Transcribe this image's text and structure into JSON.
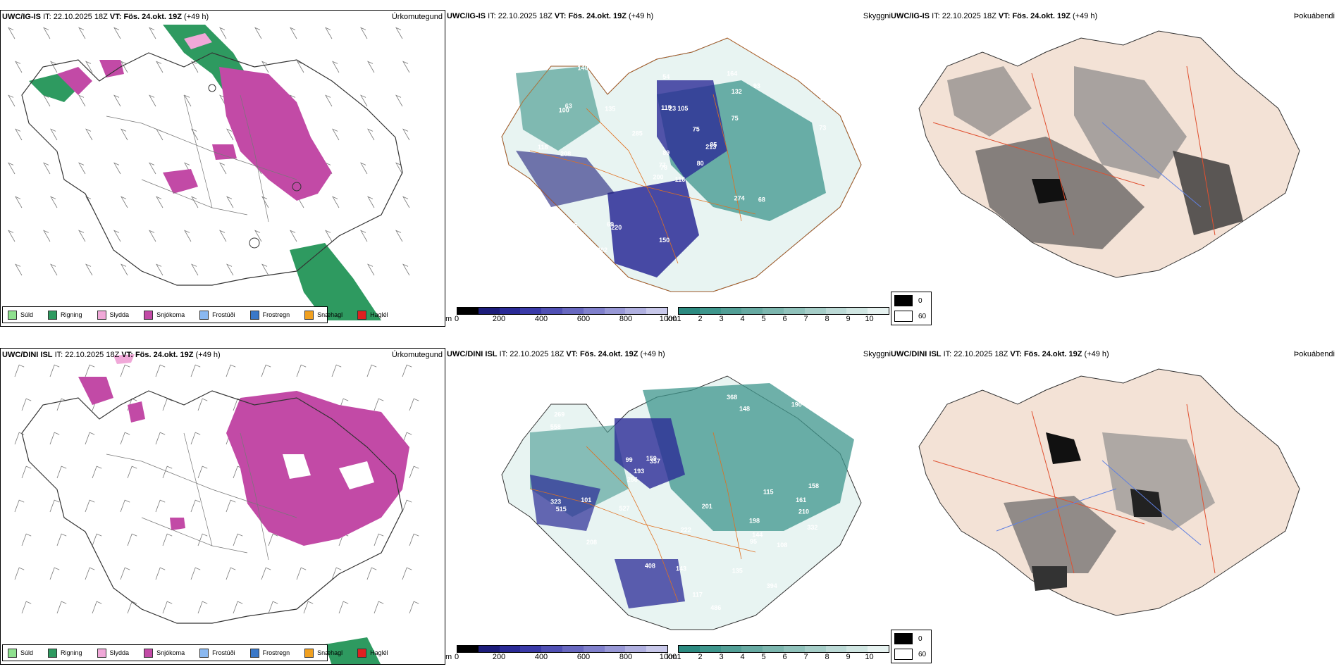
{
  "rows": [
    {
      "model": "UWC/IG-IS",
      "it_label": "IT:",
      "it_value": "22.10.2025 18Z",
      "vt_label": "VT:",
      "vt_value": "Fös. 24.okt. 19Z",
      "lead": "(+49 h)",
      "panels": {
        "precip_type": "Úrkomutegund",
        "visibility": "Skyggni",
        "fog": "Þokuábendi"
      }
    },
    {
      "model": "UWC/DINI ISL",
      "it_label": "IT:",
      "it_value": "22.10.2025 18Z",
      "vt_label": "VT:",
      "vt_value": "Fös. 24.okt. 19Z",
      "lead": "(+49 h)",
      "panels": {
        "precip_type": "Úrkomutegund",
        "visibility": "Skyggni",
        "fog": "Þokuábendi"
      }
    }
  ],
  "precip_legend": [
    {
      "label": "Súld",
      "color": "#8fe08f"
    },
    {
      "label": "Rigning",
      "color": "#2e9a60"
    },
    {
      "label": "Slydda",
      "color": "#f0a8d8"
    },
    {
      "label": "Snjókoma",
      "color": "#c24aa6"
    },
    {
      "label": "Frostúði",
      "color": "#8ab8f0"
    },
    {
      "label": "Frostregn",
      "color": "#3a78c8"
    },
    {
      "label": "Snæhagl",
      "color": "#f0a020"
    },
    {
      "label": "Haglél",
      "color": "#e02020"
    }
  ],
  "visibility_bar_m": {
    "unit": "m",
    "ticks": [
      "0",
      "200",
      "400",
      "600",
      "800",
      "1000"
    ],
    "colors": [
      "#000000",
      "#1c1c7a",
      "#2a2a96",
      "#3a3aa8",
      "#5050b4",
      "#6868c0",
      "#8080cc",
      "#9898d6",
      "#b0b0e0",
      "#c8c8ea"
    ]
  },
  "visibility_bar_km": {
    "unit": "km",
    "ticks": [
      "1",
      "2",
      "3",
      "4",
      "5",
      "6",
      "7",
      "8",
      "9",
      "10"
    ],
    "colors": [
      "#2c8a80",
      "#3e968c",
      "#529f96",
      "#67aaa2",
      "#7cb6ae",
      "#90c2bb",
      "#a6cec8",
      "#bcdad6",
      "#d0e6e2",
      "#e6f2f0"
    ]
  },
  "fog_legend": [
    {
      "label": "0",
      "color": "#000000"
    },
    {
      "label": "60",
      "color": "#ffffff"
    }
  ],
  "top_vis_labels": [
    "116",
    "100",
    "78",
    "73",
    "213",
    "220",
    "164",
    "105",
    "132",
    "80",
    "140",
    "156",
    "208",
    "177",
    "200",
    "75",
    "86",
    "115",
    "75",
    "95",
    "285",
    "227",
    "202",
    "23",
    "85",
    "68",
    "63",
    "54",
    "118",
    "274",
    "73",
    "77",
    "150",
    "89",
    "135",
    "93",
    "69"
  ],
  "bottom_vis_labels": [
    "198",
    "210",
    "256",
    "266",
    "357",
    "394",
    "89",
    "148",
    "99",
    "486",
    "558",
    "323",
    "269",
    "165",
    "408",
    "158",
    "222",
    "201",
    "159",
    "208",
    "281",
    "190",
    "256",
    "332",
    "368",
    "200",
    "144",
    "515",
    "70",
    "115",
    "117",
    "135",
    "193",
    "527",
    "161",
    "108",
    "95",
    "101",
    "143"
  ]
}
